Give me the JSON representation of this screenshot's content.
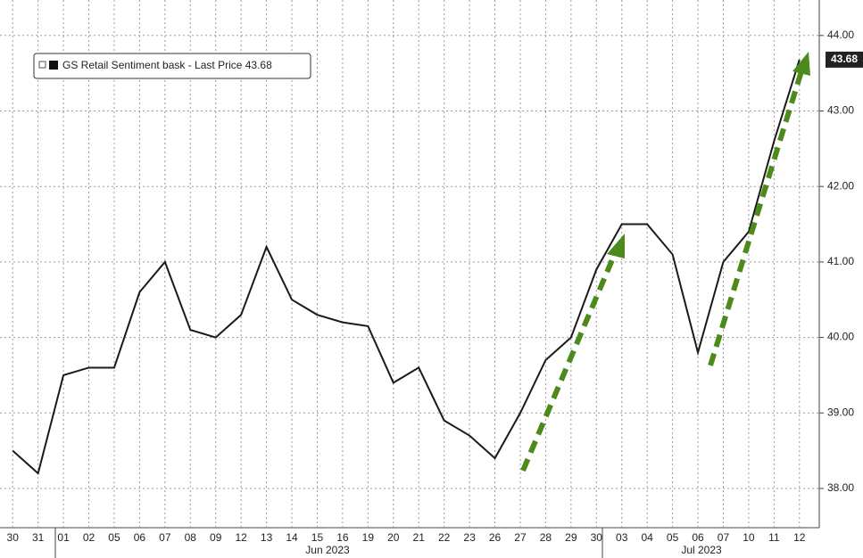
{
  "chart_data": {
    "type": "line",
    "legend": "GS Retail Sentiment bask - Last Price 43.68",
    "last_price_label": "43.68",
    "categories": [
      "30",
      "31",
      "01",
      "02",
      "05",
      "06",
      "07",
      "08",
      "09",
      "12",
      "13",
      "14",
      "15",
      "16",
      "19",
      "20",
      "21",
      "22",
      "23",
      "26",
      "27",
      "28",
      "29",
      "30",
      "03",
      "04",
      "05",
      "06",
      "07",
      "10",
      "11",
      "12"
    ],
    "month_labels": [
      "Jun 2023",
      "Jul 2023"
    ],
    "series": [
      {
        "name": "GS Retail Sentiment bask",
        "color": "#1a1a1a",
        "values": [
          38.5,
          38.2,
          39.5,
          39.6,
          39.6,
          40.6,
          41.0,
          40.1,
          40.0,
          40.3,
          41.2,
          40.5,
          40.3,
          40.2,
          40.15,
          39.4,
          39.6,
          38.9,
          38.7,
          38.4,
          39.0,
          39.7,
          40.0,
          40.9,
          41.5,
          41.5,
          41.1,
          39.8,
          41.0,
          41.4,
          42.6,
          43.68
        ]
      }
    ],
    "ylim": [
      37.48,
      44.47
    ],
    "yticks": [
      {
        "value": 38,
        "label": "38.00"
      },
      {
        "value": 39,
        "label": "39.00"
      },
      {
        "value": 40,
        "label": "40.00"
      },
      {
        "value": 41,
        "label": "41.00"
      },
      {
        "value": 42,
        "label": "42.00"
      },
      {
        "value": 43,
        "label": "43.00"
      },
      {
        "value": 44,
        "label": "44.00"
      }
    ],
    "grid": true
  }
}
